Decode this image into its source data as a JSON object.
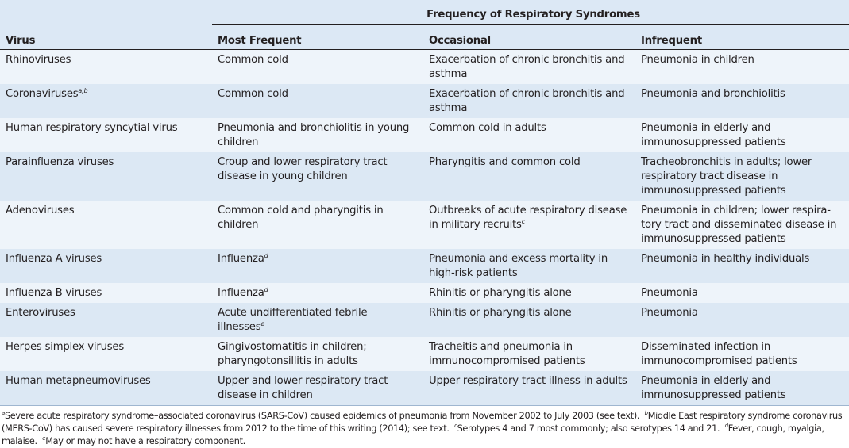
{
  "table": {
    "group_header": "Frequency of Respiratory Syndromes",
    "columns": [
      "Virus",
      "Most Frequent",
      "Occasional",
      "Infrequent"
    ],
    "rows": [
      {
        "lines": 2,
        "cells": [
          {
            "text": "Rhinoviruses"
          },
          {
            "text": "Common cold"
          },
          {
            "text": "Exacerbation of chronic bronchitis and asthma"
          },
          {
            "text": "Pneumonia in children"
          }
        ]
      },
      {
        "lines": 2,
        "cells": [
          {
            "text": "Coronaviruses",
            "sup": "a,b"
          },
          {
            "text": "Common cold"
          },
          {
            "text": "Exacerbation of chronic bronchitis and asthma"
          },
          {
            "text": "Pneumonia and bronchiolitis"
          }
        ]
      },
      {
        "lines": 2,
        "cells": [
          {
            "text": "Human respiratory syncytial virus"
          },
          {
            "text": "Pneumonia and bronchiolitis in young children"
          },
          {
            "text": "Common cold in adults"
          },
          {
            "text": "Pneumonia in elderly and immunosuppressed patients"
          }
        ]
      },
      {
        "lines": 3,
        "cells": [
          {
            "text": "Parainfluenza viruses"
          },
          {
            "text": "Croup and lower respiratory tract disease in young children"
          },
          {
            "text": "Pharyngitis and common cold"
          },
          {
            "text": "Tracheobronchitis in adults; lower respiratory tract disease in immunosuppressed patients"
          }
        ]
      },
      {
        "lines": 3,
        "cells": [
          {
            "text": "Adenoviruses"
          },
          {
            "text": "Common cold and pharyngitis in children"
          },
          {
            "text": "Outbreaks of acute respiratory disease in military recruits",
            "sup": "c"
          },
          {
            "text": "Pneumonia in children; lower respira-tory tract and disseminated disease in immunosuppressed patients"
          }
        ]
      },
      {
        "lines": 2,
        "cells": [
          {
            "text": "Influenza A viruses"
          },
          {
            "text": "Influenza",
            "sup": "d"
          },
          {
            "text": "Pneumonia and excess mortality in high-risk patients"
          },
          {
            "text": "Pneumonia in healthy individuals"
          }
        ]
      },
      {
        "lines": 1,
        "cells": [
          {
            "text": "Influenza B viruses"
          },
          {
            "text": "Influenza",
            "sup": "d"
          },
          {
            "text": "Rhinitis or pharyngitis alone"
          },
          {
            "text": "Pneumonia"
          }
        ]
      },
      {
        "lines": 2,
        "cells": [
          {
            "text": "Enteroviruses"
          },
          {
            "text": "Acute undifferentiated febrile illnesses",
            "sup": "e"
          },
          {
            "text": "Rhinitis or pharyngitis alone"
          },
          {
            "text": "Pneumonia"
          }
        ]
      },
      {
        "lines": 2,
        "cells": [
          {
            "text": "Herpes simplex viruses"
          },
          {
            "text": "Gingivostomatitis in children; pharyngotonsillitis in adults"
          },
          {
            "text": "Tracheitis and pneumonia in immunocompromised patients"
          },
          {
            "text": "Disseminated infection in immunocompromised patients"
          }
        ]
      },
      {
        "lines": 2,
        "cells": [
          {
            "text": "Human metapneumoviruses"
          },
          {
            "text": "Upper and lower respiratory tract disease in children"
          },
          {
            "text": "Upper respiratory tract illness in adults"
          },
          {
            "text": "Pneumonia in elderly and immunosuppressed patients"
          }
        ]
      }
    ]
  },
  "footnotes": [
    {
      "mark": "a",
      "text": "Severe acute respiratory syndrome–associated coronavirus (SARS-CoV) caused epidemics of pneumonia from November 2002 to July 2003 (see text)."
    },
    {
      "mark": "b",
      "text": "Middle East respiratory syndrome coronavirus (MERS-CoV) has caused severe respiratory illnesses from 2012 to the time of this writing (2014); see text."
    },
    {
      "mark": "c",
      "text": "Serotypes 4 and 7 most commonly; also serotypes 14 and 21."
    },
    {
      "mark": "d",
      "text": "Fever, cough, myalgia, malaise."
    },
    {
      "mark": "e",
      "text": "May or may not have a respiratory component."
    }
  ],
  "colors": {
    "header_bg": "#dce8f5",
    "row_light": "#eef4fa",
    "row_dark": "#dce8f4",
    "text": "#231f20"
  }
}
